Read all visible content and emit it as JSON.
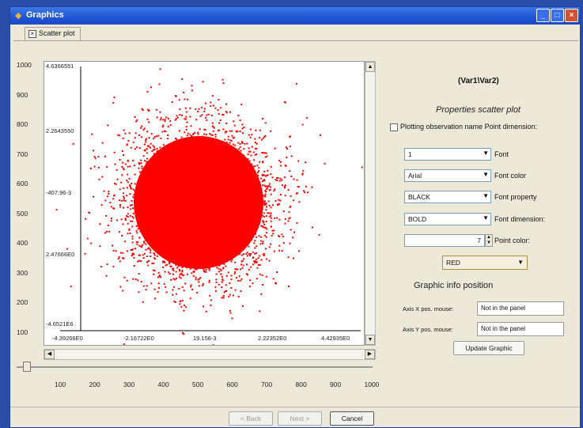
{
  "window": {
    "title": "Graphics",
    "min": "_",
    "max": "□",
    "close": "×"
  },
  "tab": {
    "label": "Scatter plot"
  },
  "plot": {
    "y_ticks": [
      "1000",
      "900",
      "800",
      "700",
      "600",
      "500",
      "400",
      "300",
      "200",
      "100"
    ],
    "x_ticks": [
      "100",
      "200",
      "300",
      "400",
      "500",
      "600",
      "700",
      "800",
      "900",
      "1000"
    ],
    "inner_y_labels": [
      "4.6366551",
      "2.2643550",
      "-407.96-3",
      "2.47666E0",
      "-4.6521E6"
    ],
    "inner_x_labels": [
      "-4.39266E0",
      "-2.16722E0",
      "19.156-3",
      "2.22352E0",
      "4.42935E0"
    ],
    "point_color": "#ff0000"
  },
  "properties": {
    "title": "(Var1\\Var2)",
    "heading": "Properties scatter plot",
    "checkbox_label": "Plotting observation name  Point dimension:",
    "font_size_value": "1",
    "font_size_label": "Font",
    "font_value": "Arial",
    "font_label": "Font color",
    "font_color_value": "BLACK",
    "font_color_label": "Font property",
    "font_property_value": "BOLD",
    "font_property_label": "Font dimension:",
    "point_dim_value": "7",
    "point_dim_label": "Point color:",
    "point_color_value": "RED",
    "info_heading": "Graphic info position",
    "axis_x_label": "Axis X pos. mouse:",
    "axis_x_value": "Not in the panel",
    "axis_y_label": "Axis Y pos. mouse:",
    "axis_y_value": "Not in the panel",
    "update_label": "Update Graphic"
  },
  "bottom": {
    "back": "< Back",
    "next": "Next >",
    "cancel": "Cancel"
  }
}
